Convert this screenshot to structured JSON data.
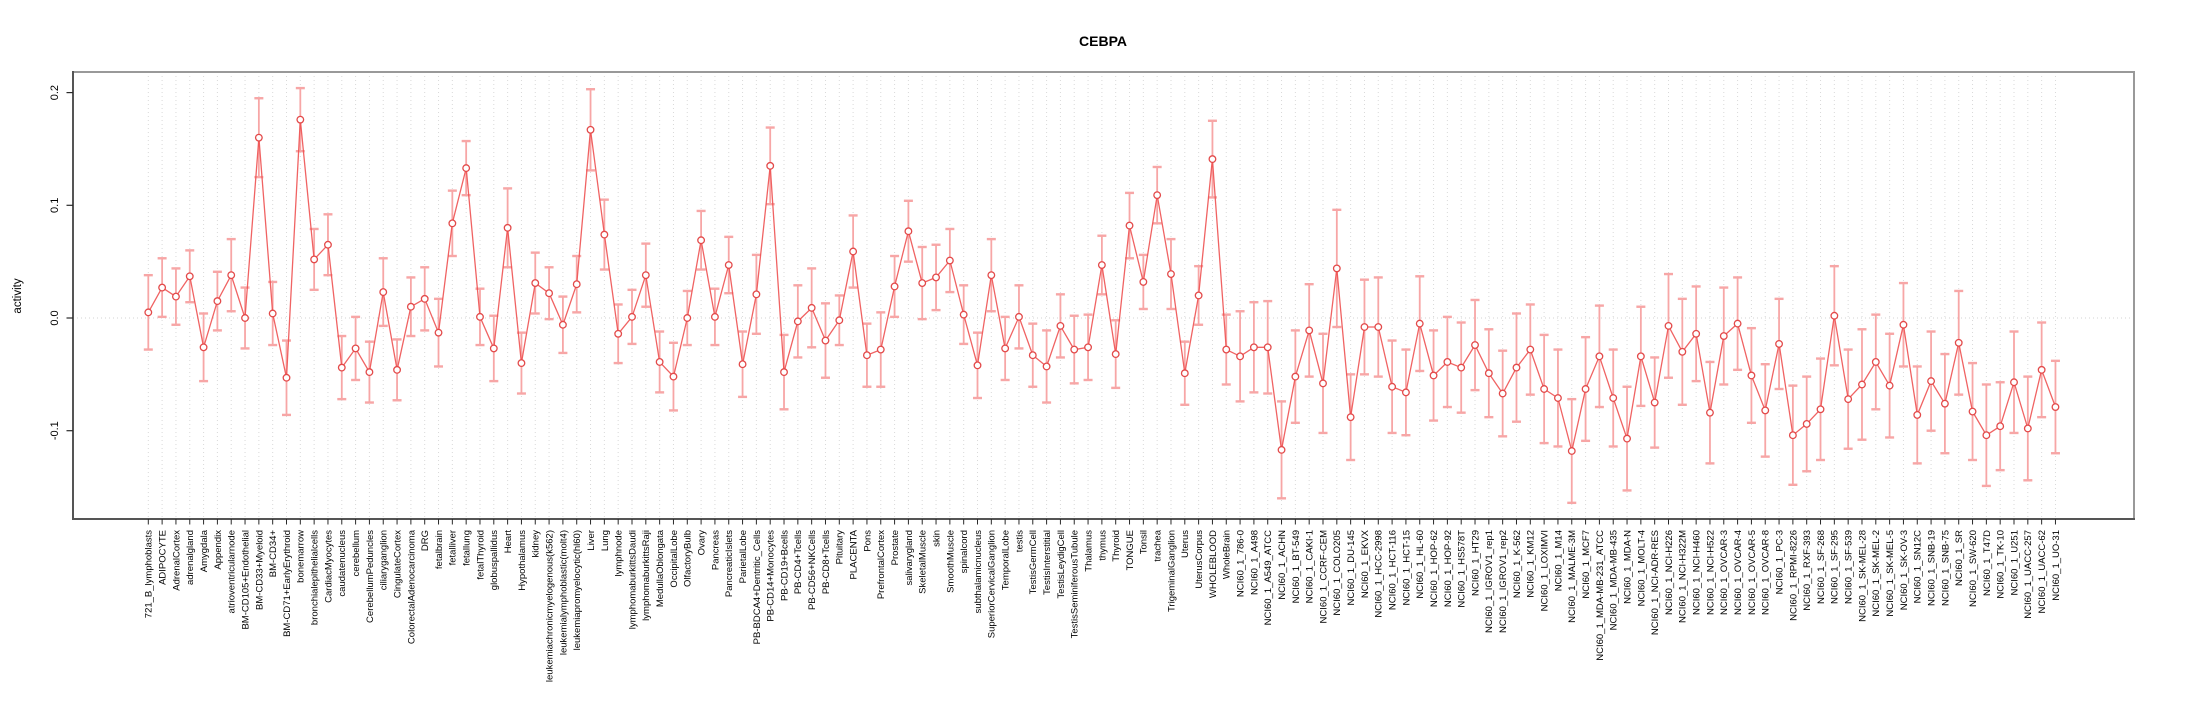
{
  "title": "CEBPA",
  "colors": {
    "error_bar": "#f7a6a6",
    "series_line": "#ee5252",
    "marker_stroke": "#e34a4a",
    "grid": "#d9d9d9",
    "zero_line": "#dcdcdc",
    "box_border": "#999999",
    "axis_dark": "#555555",
    "tick": "#2a2a2a"
  },
  "axis": {
    "y_tick_labels": [
      "0.2",
      "0.1",
      "0.0",
      "-0.1"
    ],
    "y_tick_values": [
      0.2,
      0.1,
      0.0,
      -0.1
    ]
  },
  "chart_data": {
    "type": "line",
    "title": "CEBPA",
    "xlabel": "",
    "ylabel": "activity",
    "ylim": [
      -0.178,
      0.218
    ],
    "yticks": [
      -0.1,
      0.0,
      0.1,
      0.2
    ],
    "grid": "vertical dotted line per category; horizontal dotted line at y=0",
    "legend_position": "none",
    "marker": "open-circle",
    "error_bars": true,
    "series_name": "activity",
    "categories": [
      "721_B_lymphoblasts",
      "ADIPOCYTE",
      "AdrenalCortex",
      "adrenalgland",
      "Amygdala",
      "Appendix",
      "atrioventricularnode",
      "BM-CD105+Endothelial",
      "BM-CD33+Myeloid",
      "BM-CD34+",
      "BM-CD71+EarlyErythroid",
      "bonemarrow",
      "bronchialepithelialcells",
      "CardiacMyocytes",
      "caudatenucleus",
      "cerebellum",
      "CerebellumPeduncles",
      "ciliaryganglion",
      "CingulateCortex",
      "ColorectalAdenocarcinoma",
      "DRG",
      "fetalbrain",
      "fetalliver",
      "fetallung",
      "fetalThyroid",
      "globuspallidus",
      "Heart",
      "Hypothalamus",
      "kidney",
      "leukemiachronicmyelogenous(k562)",
      "leukemialymphoblastic(molt4)",
      "leukemiapromyelocytic(hl60)",
      "Liver",
      "Lung",
      "lymphnode",
      "lymphomaburkittsDaudi",
      "lymphomaburkittsRaji",
      "MedullaOblongata",
      "OccipitalLobe",
      "OlfactoryBulb",
      "Ovary",
      "Pancreas",
      "PancreaticIslets",
      "ParietalLobe",
      "PB-BDCA4+Dentritic_Cells",
      "PB-CD14+Monocytes",
      "PB-CD19+Bcells",
      "PB-CD4+Tcells",
      "PB-CD56+NKCells",
      "PB-CD8+Tcells",
      "Pituitary",
      "PLACENTA",
      "Pons",
      "PrefrontalCortex",
      "Prostate",
      "salivarygland",
      "SkeletalMuscle",
      "skin",
      "SmoothMuscle",
      "spinalcord",
      "subthalamicnucleus",
      "SuperiorCervicalGanglion",
      "TemporalLobe",
      "testis",
      "TestisGermCell",
      "TestisInterstitial",
      "TestisLeydigCell",
      "TestisSeminiferousTubule",
      "Thalamus",
      "thymus",
      "Thyroid",
      "TONGUE",
      "Tonsil",
      "trachea",
      "TrigeminalGanglion",
      "Uterus",
      "UterusCorpus",
      "WHOLEBLOOD",
      "WholeBrain",
      "NCI60_1_786-0",
      "NCI60_1_A498",
      "NCI60_1_A549_ATCC",
      "NCI60_1_ACHN",
      "NCI60_1_BT-549",
      "NCI60_1_CAKI-1",
      "NCI60_1_CCRF-CEM",
      "NCI60_1_COLO205",
      "NCI60_1_DU-145",
      "NCI60_1_EKVX",
      "NCI60_1_HCC-2998",
      "NCI60_1_HCT-116",
      "NCI60_1_HCT-15",
      "NCI60_1_HL-60",
      "NCI60_1_HOP-62",
      "NCI60_1_HOP-92",
      "NCI60_1_HS578T",
      "NCI60_1_HT29",
      "NCI60_1_IGROV1_rep1",
      "NCI60_1_IGROV1_rep2",
      "NCI60_1_K-562",
      "NCI60_1_KM12",
      "NCI60_1_LOXIMVI",
      "NCI60_1_M14",
      "NCI60_1_MALME-3M",
      "NCI60_1_MCF7",
      "NCI60_1_MDA-MB-231_ATCC",
      "NCI60_1_MDA-MB-435",
      "NCI60_1_MDA-N",
      "NCI60_1_MOLT-4",
      "NCI60_1_NCI-ADR-RES",
      "NCI60_1_NCI-H226",
      "NCI60_1_NCI-H322M",
      "NCI60_1_NCI-H460",
      "NCI60_1_NCI-H522",
      "NCI60_1_OVCAR-3",
      "NCI60_1_OVCAR-4",
      "NCI60_1_OVCAR-5",
      "NCI60_1_OVCAR-8",
      "NCI60_1_PC-3",
      "NCI60_1_RPMI-8226",
      "NCI60_1_RXF-393",
      "NCI60_1_SF-268",
      "NCI60_1_SF-295",
      "NCI60_1_SF-539",
      "NCI60_1_SK-MEL-28",
      "NCI60_1_SK-MEL-2",
      "NCI60_1_SK-MEL-5",
      "NCI60_1_SK-OV-3",
      "NCI60_1_SN12C",
      "NCI60_1_SNB-19",
      "NCI60_1_SNB-75",
      "NCI60_1_SR",
      "NCI60_1_SW-620",
      "NCI60_1_T47D",
      "NCI60_1_TK-10",
      "NCI60_1_U251",
      "NCI60_1_UACC-257",
      "NCI60_1_UACC-62",
      "NCI60_1_UO-31"
    ],
    "values": [
      0.005,
      0.027,
      0.019,
      0.037,
      -0.026,
      0.015,
      0.038,
      0.0,
      0.16,
      0.004,
      -0.053,
      0.176,
      0.052,
      0.065,
      -0.044,
      -0.027,
      -0.048,
      0.023,
      -0.046,
      0.01,
      0.017,
      -0.013,
      0.084,
      0.133,
      0.001,
      -0.027,
      0.08,
      -0.04,
      0.031,
      0.022,
      -0.006,
      0.03,
      0.167,
      0.074,
      -0.014,
      0.001,
      0.038,
      -0.039,
      -0.052,
      0.0,
      0.069,
      0.001,
      0.047,
      -0.041,
      0.021,
      0.135,
      -0.048,
      -0.003,
      0.009,
      -0.02,
      -0.002,
      0.059,
      -0.033,
      -0.028,
      0.028,
      0.077,
      0.031,
      0.036,
      0.051,
      0.003,
      -0.042,
      0.038,
      -0.027,
      0.001,
      -0.033,
      -0.043,
      -0.007,
      -0.028,
      -0.026,
      0.047,
      -0.032,
      0.082,
      0.032,
      0.109,
      0.039,
      -0.049,
      0.02,
      0.141,
      -0.028,
      -0.034,
      -0.026,
      -0.026,
      -0.117,
      -0.052,
      -0.011,
      -0.058,
      0.044,
      -0.088,
      -0.008,
      -0.008,
      -0.061,
      -0.066,
      -0.005,
      -0.051,
      -0.039,
      -0.044,
      -0.024,
      -0.049,
      -0.067,
      -0.044,
      -0.028,
      -0.063,
      -0.071,
      -0.118,
      -0.063,
      -0.034,
      -0.071,
      -0.107,
      -0.034,
      -0.075,
      -0.007,
      -0.03,
      -0.014,
      -0.084,
      -0.016,
      -0.005,
      -0.051,
      -0.082,
      -0.023,
      -0.104,
      -0.094,
      -0.081,
      0.002,
      -0.072,
      -0.059,
      -0.039,
      -0.06,
      -0.006,
      -0.086,
      -0.056,
      -0.076,
      -0.022,
      -0.083,
      -0.104,
      -0.096,
      -0.057,
      -0.098,
      -0.046,
      -0.079
    ],
    "errors": [
      0.033,
      0.026,
      0.025,
      0.023,
      0.03,
      0.026,
      0.032,
      0.027,
      0.035,
      0.028,
      0.033,
      0.028,
      0.027,
      0.027,
      0.028,
      0.028,
      0.027,
      0.03,
      0.027,
      0.026,
      0.028,
      0.03,
      0.029,
      0.024,
      0.025,
      0.029,
      0.035,
      0.027,
      0.027,
      0.023,
      0.025,
      0.025,
      0.036,
      0.031,
      0.026,
      0.024,
      0.028,
      0.027,
      0.03,
      0.024,
      0.026,
      0.025,
      0.025,
      0.029,
      0.035,
      0.034,
      0.033,
      0.032,
      0.035,
      0.033,
      0.022,
      0.032,
      0.028,
      0.033,
      0.027,
      0.027,
      0.032,
      0.029,
      0.028,
      0.026,
      0.029,
      0.032,
      0.028,
      0.028,
      0.028,
      0.032,
      0.028,
      0.03,
      0.029,
      0.026,
      0.03,
      0.029,
      0.024,
      0.025,
      0.031,
      0.028,
      0.026,
      0.034,
      0.031,
      0.04,
      0.04,
      0.041,
      0.043,
      0.041,
      0.041,
      0.044,
      0.052,
      0.038,
      0.042,
      0.044,
      0.041,
      0.038,
      0.042,
      0.04,
      0.04,
      0.04,
      0.04,
      0.039,
      0.038,
      0.048,
      0.04,
      0.048,
      0.043,
      0.046,
      0.046,
      0.045,
      0.043,
      0.046,
      0.044,
      0.04,
      0.046,
      0.047,
      0.042,
      0.045,
      0.043,
      0.041,
      0.042,
      0.041,
      0.04,
      0.044,
      0.042,
      0.045,
      0.044,
      0.044,
      0.049,
      0.042,
      0.046,
      0.037,
      0.043,
      0.044,
      0.044,
      0.046,
      0.043,
      0.045,
      0.039,
      0.045,
      0.046,
      0.042,
      0.041
    ]
  }
}
